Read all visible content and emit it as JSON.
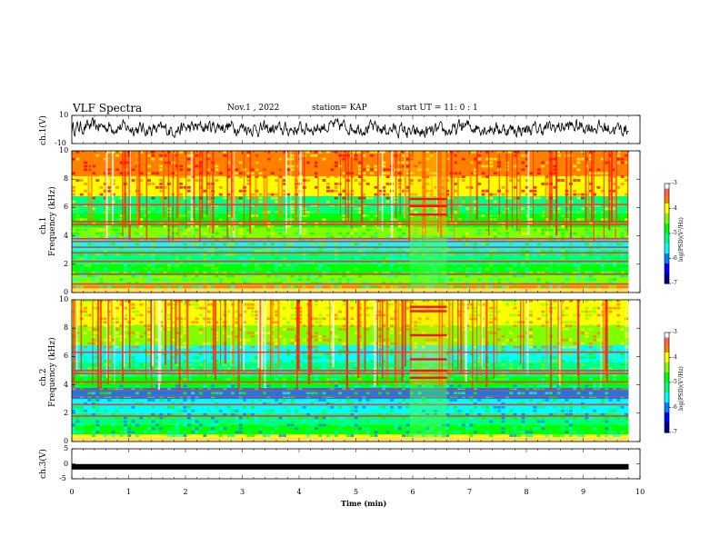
{
  "header": {
    "title": "VLF Spectra",
    "date": "Nov.1 , 2022",
    "station": "station= KAP",
    "start_ut": "start UT = 11: 0 : 1"
  },
  "chart_data": [
    {
      "type": "line",
      "panel": "ch.1 waveform",
      "ylabel": "ch.1(V)",
      "ylim": [
        -10,
        10
      ],
      "yticks": [
        "10",
        "-10"
      ],
      "xlim": [
        0,
        10
      ]
    },
    {
      "type": "heatmap",
      "panel": "ch.1 spectrogram",
      "ylabel_top": "ch.1",
      "ylabel": "Frequency (kHz)",
      "ylim": [
        0,
        10
      ],
      "yticks": [
        "0",
        "2",
        "4",
        "6",
        "8",
        "10"
      ],
      "xlim": [
        0,
        10
      ],
      "data_until_min": 9.8,
      "colorbar": {
        "label": "log(PSD)(V²/Hz)",
        "range": [
          -7,
          -3
        ],
        "ticks": [
          "-3",
          "-4",
          "-5",
          "-6",
          "-7"
        ]
      },
      "bright_lines_khz": [
        0.6,
        1.3,
        2.2,
        2.8,
        3.2,
        3.6,
        3.8,
        4.8,
        5.0,
        6.2
      ],
      "event_window_min": [
        5.95,
        6.6
      ],
      "event_lines_khz": [
        5.5,
        6.1,
        6.6
      ]
    },
    {
      "type": "heatmap",
      "panel": "ch.2 spectrogram",
      "ylabel_top": "ch.2",
      "ylabel": "Frequency (kHz)",
      "ylim": [
        0,
        10
      ],
      "yticks": [
        "0",
        "2",
        "4",
        "6",
        "8",
        "10"
      ],
      "xlim": [
        0,
        10
      ],
      "data_until_min": 9.8,
      "colorbar": {
        "label": "log(PSD)(V²/Hz)",
        "range": [
          -7,
          -3
        ],
        "ticks": [
          "-3",
          "-4",
          "-5",
          "-6",
          "-7"
        ]
      },
      "bright_lines_khz": [
        1.8,
        2.6,
        3.2,
        3.6,
        4.2,
        4.8,
        5.0,
        6.3
      ],
      "event_window_min": [
        5.95,
        6.6
      ],
      "event_lines_khz": [
        4.5,
        5.0,
        5.8,
        7.5,
        9.2,
        9.5
      ]
    },
    {
      "type": "line",
      "panel": "ch.3 waveform",
      "ylabel": "ch.3(V)",
      "ylim": [
        -5,
        5
      ],
      "yticks": [
        "5",
        "0",
        "-5"
      ],
      "xlim": [
        0,
        10
      ],
      "level_v": -1.0
    }
  ],
  "xaxis": {
    "label": "Time (min)",
    "ticks": [
      "0",
      "1",
      "2",
      "3",
      "4",
      "5",
      "6",
      "7",
      "8",
      "9",
      "10"
    ]
  },
  "colors": {
    "trace": "#000000",
    "colormap": [
      "#000080",
      "#0000ff",
      "#0080ff",
      "#00ffff",
      "#00ff80",
      "#00ff00",
      "#80ff00",
      "#ffff00",
      "#ff8000",
      "#ff0000",
      "#ffffff"
    ]
  }
}
